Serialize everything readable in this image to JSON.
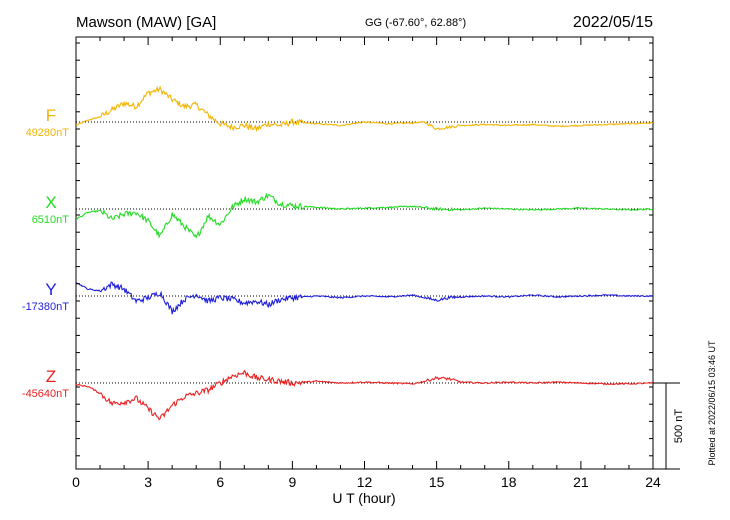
{
  "header": {
    "station": "Mawson (MAW)  [GA]",
    "coords": "GG (-67.60°,  62.88°)",
    "date": "2022/05/15"
  },
  "plotted_note": "Plotted at 2022/06/15 03:46 UT",
  "chart_data": {
    "type": "line",
    "xlabel": "U T (hour)",
    "xlim": [
      0,
      24
    ],
    "x_ticks": [
      0,
      3,
      6,
      9,
      12,
      15,
      18,
      21,
      24
    ],
    "x_tick_labels": [
      "0",
      "3",
      "6",
      "9",
      "12",
      "15",
      "18",
      "21",
      "24"
    ],
    "scale_bar": {
      "value_nT": 500,
      "label": "500 nT"
    },
    "grid": false,
    "series": [
      {
        "name": "F",
        "baseline_label": "49280nT",
        "baseline_nT": 49280,
        "color": "#f5b400",
        "points": [
          [
            0,
            -20
          ],
          [
            0.5,
            10
          ],
          [
            1,
            30
          ],
          [
            1.5,
            70
          ],
          [
            2,
            110
          ],
          [
            2.5,
            90
          ],
          [
            3,
            170
          ],
          [
            3.5,
            190
          ],
          [
            4,
            130
          ],
          [
            4.5,
            90
          ],
          [
            5,
            100
          ],
          [
            5.5,
            40
          ],
          [
            6,
            -10
          ],
          [
            6.5,
            -30
          ],
          [
            7,
            -20
          ],
          [
            7.5,
            -40
          ],
          [
            8,
            -10
          ],
          [
            8.5,
            -20
          ],
          [
            9,
            0
          ],
          [
            10,
            -10
          ],
          [
            11,
            -20
          ],
          [
            12,
            0
          ],
          [
            13,
            -10
          ],
          [
            14,
            -5
          ],
          [
            14.5,
            0
          ],
          [
            15,
            -40
          ],
          [
            15.5,
            -30
          ],
          [
            16,
            -20
          ],
          [
            17,
            -15
          ],
          [
            18,
            -20
          ],
          [
            19,
            -15
          ],
          [
            20,
            -25
          ],
          [
            21,
            -20
          ],
          [
            22,
            -15
          ],
          [
            23,
            -10
          ],
          [
            24,
            -5
          ]
        ]
      },
      {
        "name": "X",
        "baseline_label": "6510nT",
        "baseline_nT": 6510,
        "color": "#22dd22",
        "points": [
          [
            0,
            -60
          ],
          [
            0.5,
            -20
          ],
          [
            1,
            -10
          ],
          [
            1.5,
            -60
          ],
          [
            2,
            -30
          ],
          [
            2.5,
            -20
          ],
          [
            3,
            -70
          ],
          [
            3.5,
            -160
          ],
          [
            4,
            -30
          ],
          [
            4.5,
            -100
          ],
          [
            5,
            -170
          ],
          [
            5.5,
            -40
          ],
          [
            6,
            -90
          ],
          [
            6.5,
            10
          ],
          [
            7,
            60
          ],
          [
            7.5,
            40
          ],
          [
            8,
            80
          ],
          [
            8.5,
            30
          ],
          [
            9,
            20
          ],
          [
            10,
            10
          ],
          [
            11,
            0
          ],
          [
            12,
            5
          ],
          [
            13,
            10
          ],
          [
            14,
            15
          ],
          [
            15,
            0
          ],
          [
            16,
            -5
          ],
          [
            17,
            5
          ],
          [
            18,
            0
          ],
          [
            19,
            -5
          ],
          [
            20,
            0
          ],
          [
            21,
            5
          ],
          [
            22,
            0
          ],
          [
            23,
            -5
          ],
          [
            24,
            0
          ]
        ]
      },
      {
        "name": "Y",
        "baseline_label": "-17380nT",
        "baseline_nT": -17380,
        "color": "#1f1fdc",
        "points": [
          [
            0,
            80
          ],
          [
            0.5,
            40
          ],
          [
            1,
            30
          ],
          [
            1.5,
            70
          ],
          [
            2,
            40
          ],
          [
            2.5,
            -30
          ],
          [
            3,
            -10
          ],
          [
            3.5,
            20
          ],
          [
            4,
            -90
          ],
          [
            4.5,
            -20
          ],
          [
            5,
            10
          ],
          [
            5.5,
            -30
          ],
          [
            6,
            -10
          ],
          [
            6.5,
            -20
          ],
          [
            7,
            -40
          ],
          [
            7.5,
            -30
          ],
          [
            8,
            -50
          ],
          [
            8.5,
            -20
          ],
          [
            9,
            -10
          ],
          [
            10,
            0
          ],
          [
            11,
            -10
          ],
          [
            12,
            0
          ],
          [
            13,
            -5
          ],
          [
            14,
            5
          ],
          [
            15,
            -25
          ],
          [
            15.5,
            -10
          ],
          [
            16,
            -5
          ],
          [
            17,
            0
          ],
          [
            18,
            -5
          ],
          [
            19,
            5
          ],
          [
            20,
            -5
          ],
          [
            21,
            0
          ],
          [
            22,
            5
          ],
          [
            23,
            0
          ],
          [
            24,
            0
          ]
        ]
      },
      {
        "name": "Z",
        "baseline_label": "-45640nT",
        "baseline_nT": -45640,
        "color": "#e82020",
        "points": [
          [
            0,
            -10
          ],
          [
            0.5,
            -20
          ],
          [
            1,
            -60
          ],
          [
            1.5,
            -120
          ],
          [
            2,
            -110
          ],
          [
            2.5,
            -90
          ],
          [
            3,
            -150
          ],
          [
            3.5,
            -210
          ],
          [
            4,
            -130
          ],
          [
            4.5,
            -80
          ],
          [
            5,
            -60
          ],
          [
            5.5,
            -40
          ],
          [
            6,
            0
          ],
          [
            6.5,
            40
          ],
          [
            7,
            60
          ],
          [
            7.5,
            30
          ],
          [
            8,
            20
          ],
          [
            9,
            0
          ],
          [
            10,
            10
          ],
          [
            11,
            0
          ],
          [
            12,
            5
          ],
          [
            13,
            0
          ],
          [
            14,
            -5
          ],
          [
            14.5,
            10
          ],
          [
            15,
            30
          ],
          [
            15.5,
            25
          ],
          [
            16,
            5
          ],
          [
            17,
            0
          ],
          [
            18,
            5
          ],
          [
            19,
            0
          ],
          [
            20,
            5
          ],
          [
            21,
            0
          ],
          [
            22,
            -5
          ],
          [
            23,
            -5
          ],
          [
            24,
            0
          ]
        ]
      }
    ]
  }
}
